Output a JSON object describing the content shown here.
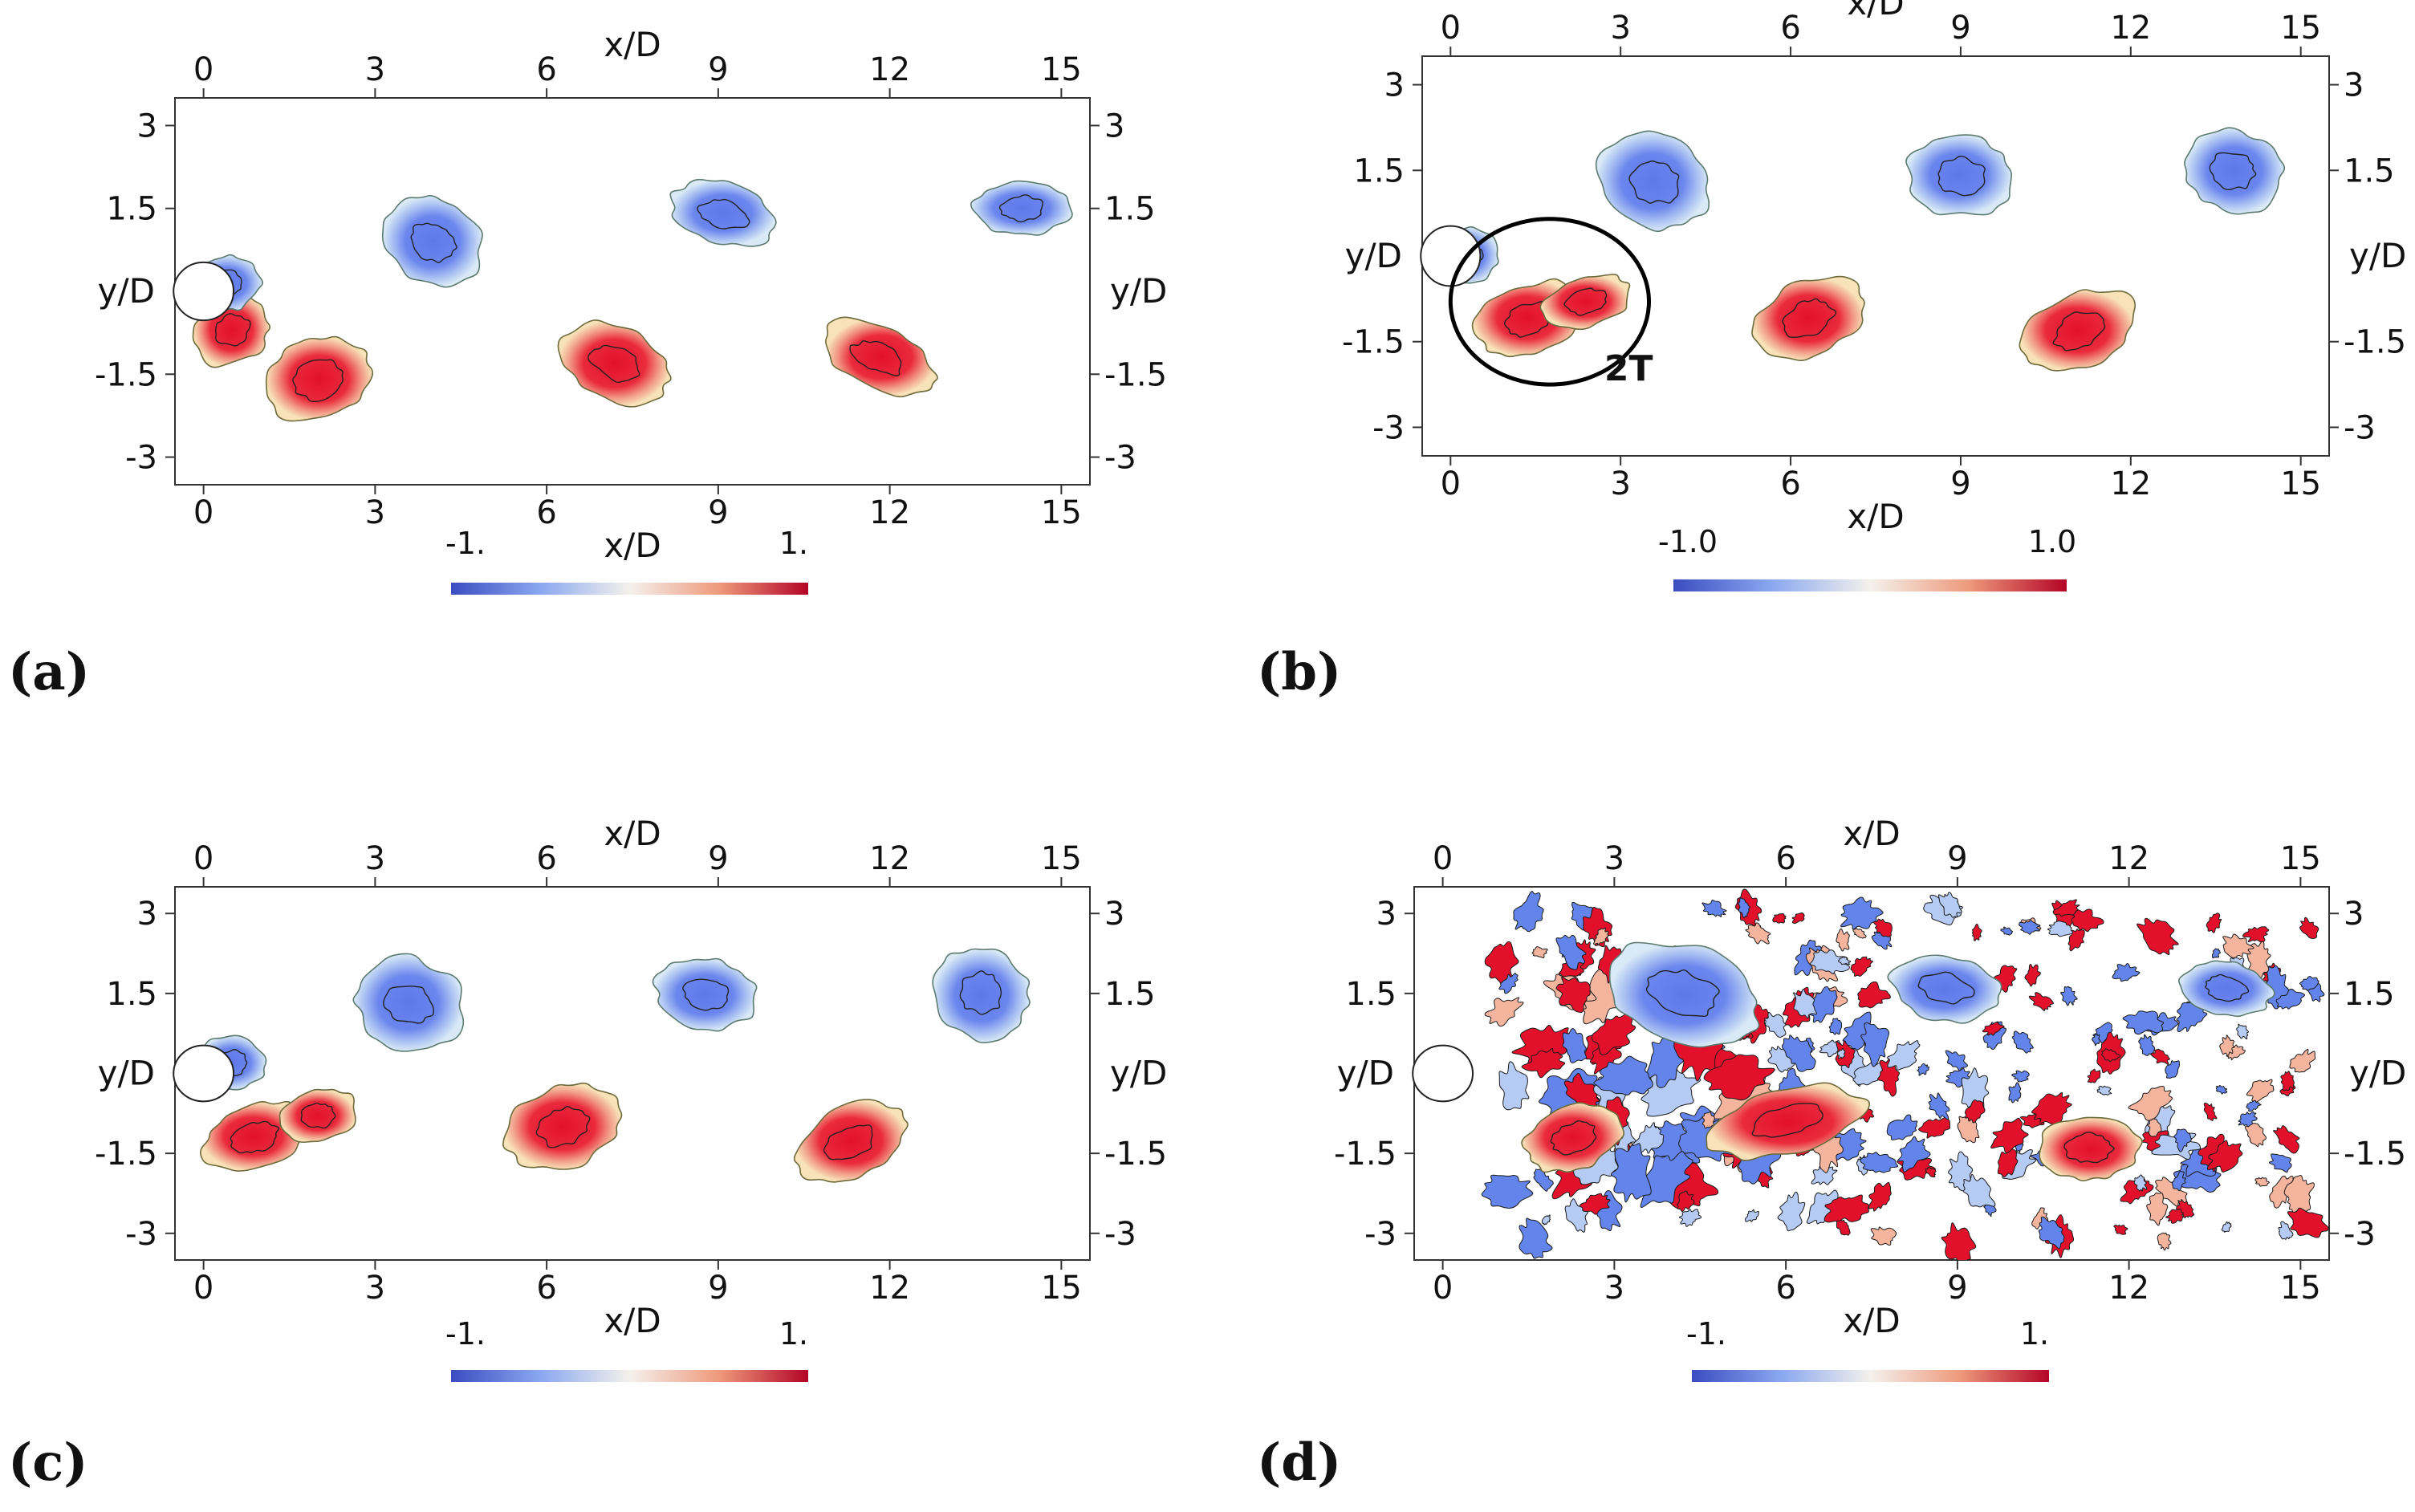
{
  "chart_data": [
    {
      "type": "heatmap",
      "panel_label": "(a)",
      "xlabel": "x/D",
      "ylabel": "y/D",
      "xlim": [
        -0.5,
        15.5
      ],
      "ylim": [
        -3.5,
        3.5
      ],
      "xticks": [
        0,
        3,
        6,
        9,
        12,
        15
      ],
      "yticks": [
        3,
        1.5,
        -1.5,
        -3
      ],
      "colorbar": {
        "min_label": "-1.",
        "max_label": "1.",
        "min": -1,
        "max": 1
      },
      "cylinder": {
        "x": 0,
        "y": 0,
        "diameter": 1
      },
      "annotation": null,
      "vortices": [
        {
          "sign": -1,
          "x": 4.0,
          "y": 0.9,
          "rx": 0.9,
          "ry": 0.75,
          "tilt": 25
        },
        {
          "sign": -1,
          "x": 9.1,
          "y": 1.4,
          "rx": 0.95,
          "ry": 0.55,
          "tilt": 15
        },
        {
          "sign": -1,
          "x": 14.3,
          "y": 1.5,
          "rx": 0.85,
          "ry": 0.5,
          "tilt": 0
        },
        {
          "sign": 1,
          "x": 2.0,
          "y": -1.6,
          "rx": 0.95,
          "ry": 0.75,
          "tilt": -20
        },
        {
          "sign": 1,
          "x": 7.2,
          "y": -1.3,
          "rx": 1.0,
          "ry": 0.65,
          "tilt": 25
        },
        {
          "sign": 1,
          "x": 11.8,
          "y": -1.2,
          "rx": 1.05,
          "ry": 0.55,
          "tilt": 25
        },
        {
          "sign": 1,
          "x": 0.5,
          "y": -0.7,
          "rx": 0.7,
          "ry": 0.6,
          "tilt": -40
        },
        {
          "sign": -1,
          "x": 0.4,
          "y": 0.15,
          "rx": 0.6,
          "ry": 0.5,
          "tilt": 0
        }
      ],
      "noise": 0
    },
    {
      "type": "heatmap",
      "panel_label": "(b)",
      "xlabel": "x/D",
      "ylabel": "y/D",
      "xlim": [
        -0.5,
        15.5
      ],
      "ylim": [
        -3.5,
        3.5
      ],
      "xticks": [
        0,
        3,
        6,
        9,
        12,
        15
      ],
      "yticks": [
        3,
        1.5,
        -1.5,
        -3
      ],
      "colorbar": {
        "min_label": "-1.0",
        "max_label": "1.0",
        "min": -1,
        "max": 1
      },
      "cylinder": {
        "x": 0,
        "y": 0,
        "diameter": 1
      },
      "annotation": {
        "text": "2T",
        "cx": 1.75,
        "cy": -0.8,
        "rx": 1.75,
        "ry": 1.45
      },
      "vortices": [
        {
          "sign": -1,
          "x": 3.6,
          "y": 1.3,
          "rx": 1.0,
          "ry": 0.8,
          "tilt": 20
        },
        {
          "sign": -1,
          "x": 9.0,
          "y": 1.4,
          "rx": 0.95,
          "ry": 0.7,
          "tilt": 5
        },
        {
          "sign": -1,
          "x": 13.8,
          "y": 1.5,
          "rx": 0.9,
          "ry": 0.7,
          "tilt": 20
        },
        {
          "sign": 1,
          "x": 6.3,
          "y": -1.1,
          "rx": 1.05,
          "ry": 0.65,
          "tilt": -25
        },
        {
          "sign": 1,
          "x": 11.1,
          "y": -1.3,
          "rx": 1.05,
          "ry": 0.65,
          "tilt": -25
        },
        {
          "sign": 1,
          "x": 1.4,
          "y": -1.1,
          "rx": 1.0,
          "ry": 0.6,
          "tilt": -20
        },
        {
          "sign": 1,
          "x": 2.4,
          "y": -0.8,
          "rx": 0.8,
          "ry": 0.45,
          "tilt": -15
        },
        {
          "sign": -1,
          "x": 0.3,
          "y": 0.0,
          "rx": 0.55,
          "ry": 0.5,
          "tilt": 0
        }
      ],
      "noise": 0
    },
    {
      "type": "heatmap",
      "panel_label": "(c)",
      "xlabel": "x/D",
      "ylabel": "y/D",
      "xlim": [
        -0.5,
        15.5
      ],
      "ylim": [
        -3.5,
        3.5
      ],
      "xticks": [
        0,
        3,
        6,
        9,
        12,
        15
      ],
      "yticks": [
        3,
        1.5,
        -1.5,
        -3
      ],
      "colorbar": {
        "min_label": "-1.",
        "max_label": "1.",
        "min": -1,
        "max": 1
      },
      "cylinder": {
        "x": 0,
        "y": 0,
        "diameter": 1
      },
      "annotation": null,
      "vortices": [
        {
          "sign": -1,
          "x": 3.6,
          "y": 1.3,
          "rx": 0.95,
          "ry": 0.85,
          "tilt": 15
        },
        {
          "sign": -1,
          "x": 8.8,
          "y": 1.5,
          "rx": 0.9,
          "ry": 0.65,
          "tilt": 10
        },
        {
          "sign": -1,
          "x": 13.6,
          "y": 1.5,
          "rx": 0.85,
          "ry": 0.85,
          "tilt": 25
        },
        {
          "sign": 1,
          "x": 6.3,
          "y": -1.0,
          "rx": 1.05,
          "ry": 0.75,
          "tilt": -20
        },
        {
          "sign": 1,
          "x": 11.3,
          "y": -1.3,
          "rx": 1.05,
          "ry": 0.65,
          "tilt": -25
        },
        {
          "sign": 1,
          "x": 0.9,
          "y": -1.2,
          "rx": 0.95,
          "ry": 0.6,
          "tilt": -20
        },
        {
          "sign": 1,
          "x": 2.0,
          "y": -0.8,
          "rx": 0.7,
          "ry": 0.5,
          "tilt": -15
        },
        {
          "sign": -1,
          "x": 0.5,
          "y": 0.2,
          "rx": 0.6,
          "ry": 0.5,
          "tilt": 0
        }
      ],
      "noise": 0
    },
    {
      "type": "heatmap",
      "panel_label": "(d)",
      "xlabel": "x/D",
      "ylabel": "y/D",
      "xlim": [
        -0.5,
        15.5
      ],
      "ylim": [
        -3.5,
        3.5
      ],
      "xticks": [
        0,
        3,
        6,
        9,
        12,
        15
      ],
      "yticks": [
        3,
        1.5,
        -1.5,
        -3
      ],
      "colorbar": {
        "min_label": "-1.",
        "max_label": "1.",
        "min": -1,
        "max": 1
      },
      "cylinder": {
        "x": 0,
        "y": 0,
        "diameter": 1
      },
      "annotation": null,
      "vortices": [
        {
          "sign": -1,
          "x": 4.2,
          "y": 1.5,
          "rx": 1.4,
          "ry": 0.9,
          "tilt": 15
        },
        {
          "sign": -1,
          "x": 8.8,
          "y": 1.6,
          "rx": 1.0,
          "ry": 0.6,
          "tilt": 10
        },
        {
          "sign": -1,
          "x": 13.7,
          "y": 1.6,
          "rx": 0.8,
          "ry": 0.5,
          "tilt": 10
        },
        {
          "sign": 1,
          "x": 2.3,
          "y": -1.2,
          "rx": 0.9,
          "ry": 0.6,
          "tilt": -20
        },
        {
          "sign": 1,
          "x": 6.0,
          "y": -0.9,
          "rx": 1.4,
          "ry": 0.6,
          "tilt": -15
        },
        {
          "sign": 1,
          "x": 11.3,
          "y": -1.4,
          "rx": 0.9,
          "ry": 0.6,
          "tilt": 0
        }
      ],
      "noise": 260
    }
  ]
}
